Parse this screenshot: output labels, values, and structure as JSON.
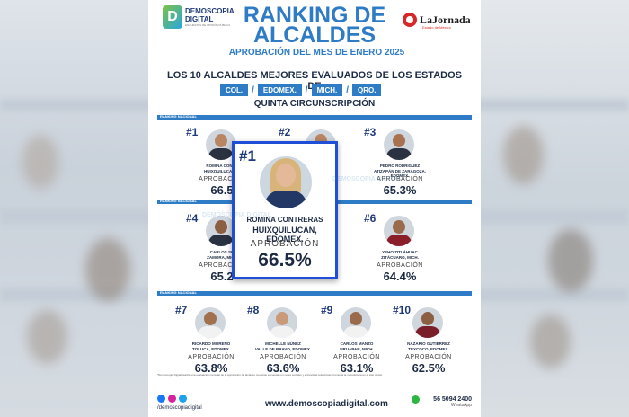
{
  "brand": {
    "logo_letter": "D",
    "logo_line1": "DEMOSCOPIA",
    "logo_line2": "DIGITAL",
    "logo_tagline": "ENCUESTAS DE OPINIÓN PÚBLICA"
  },
  "partner": {
    "name": "LaJornada",
    "sub": "Estado de México"
  },
  "title": "RANKING DE ALCALDES",
  "subtitle": "APROBACIÓN DEL MES DE ENERO 2025",
  "intro": "LOS 10 ALCALDES MEJORES EVALUADOS DE LOS ESTADOS DE",
  "states": [
    "COL.",
    "EDOMEX.",
    "MICH.",
    "QRO."
  ],
  "state_separator": "/",
  "region": "QUINTA CIRCUNSCRIPCIÓN",
  "section_label": "RANKING NACIONAL",
  "approval_label": "APROBACIÓN",
  "featured": {
    "rank": "#1",
    "name": "ROMINA CONTRERAS",
    "municipality": "HUIXQUILUCAN, EDOMEX.",
    "approval": "66.5%"
  },
  "cards": [
    {
      "rank": "#1",
      "name": "ROMINA CONTR",
      "municipality": "HUIXQUILUCAN, E",
      "approval": "66.5"
    },
    {
      "rank": "#2",
      "name": "",
      "municipality": "",
      "approval": ""
    },
    {
      "rank": "#3",
      "name": "PEDRO RODRIGUEZ",
      "municipality": "ATIZAPÁN DE ZARAGOZA, EDOMEX.",
      "approval": "65.3%"
    },
    {
      "rank": "#4",
      "name": "CARLOS SU",
      "municipality": "ZAMORA, MICH",
      "approval": "65.2"
    },
    {
      "rank": "#6",
      "name": "YEHO ZITLÁHUAC",
      "municipality": "ZITÁCUARO, MICH.",
      "approval": "64.4%"
    },
    {
      "rank": "#7",
      "name": "RICARDO MORENO",
      "municipality": "TOLUCA, EDOMEX.",
      "approval": "63.8%"
    },
    {
      "rank": "#8",
      "name": "MICHELLE NÚÑEZ",
      "municipality": "VALLE DE BRAVO, EDOMEX.",
      "approval": "63.6%"
    },
    {
      "rank": "#9",
      "name": "CARLOS MANZO",
      "municipality": "URUAPAN, MICH.",
      "approval": "63.1%"
    },
    {
      "rank": "#10",
      "name": "NAZARIO GUTIÉRREZ",
      "municipality": "TEXCOCO, EDOMEX.",
      "approval": "62.5%"
    }
  ],
  "footnote": "*Demoscopia Digital realiza una evaluación mensual de la aprobación de alcaldes mediante encuestas en redes sociales y entrevistas telefónicas. Consulta la metodología en el sitio oficial.",
  "footer": {
    "handle": "/demoscopiadigital",
    "url": "www.demoscopiadigital.com",
    "phone": "56 5094 2400",
    "whatsapp": "WhatsApp"
  },
  "watermark_text": "DEMOSCOPIA DIGITAL",
  "colors": {
    "accent": "#2f7cc6",
    "featured_border": "#1f4fd6",
    "text": "#1c2a44"
  }
}
